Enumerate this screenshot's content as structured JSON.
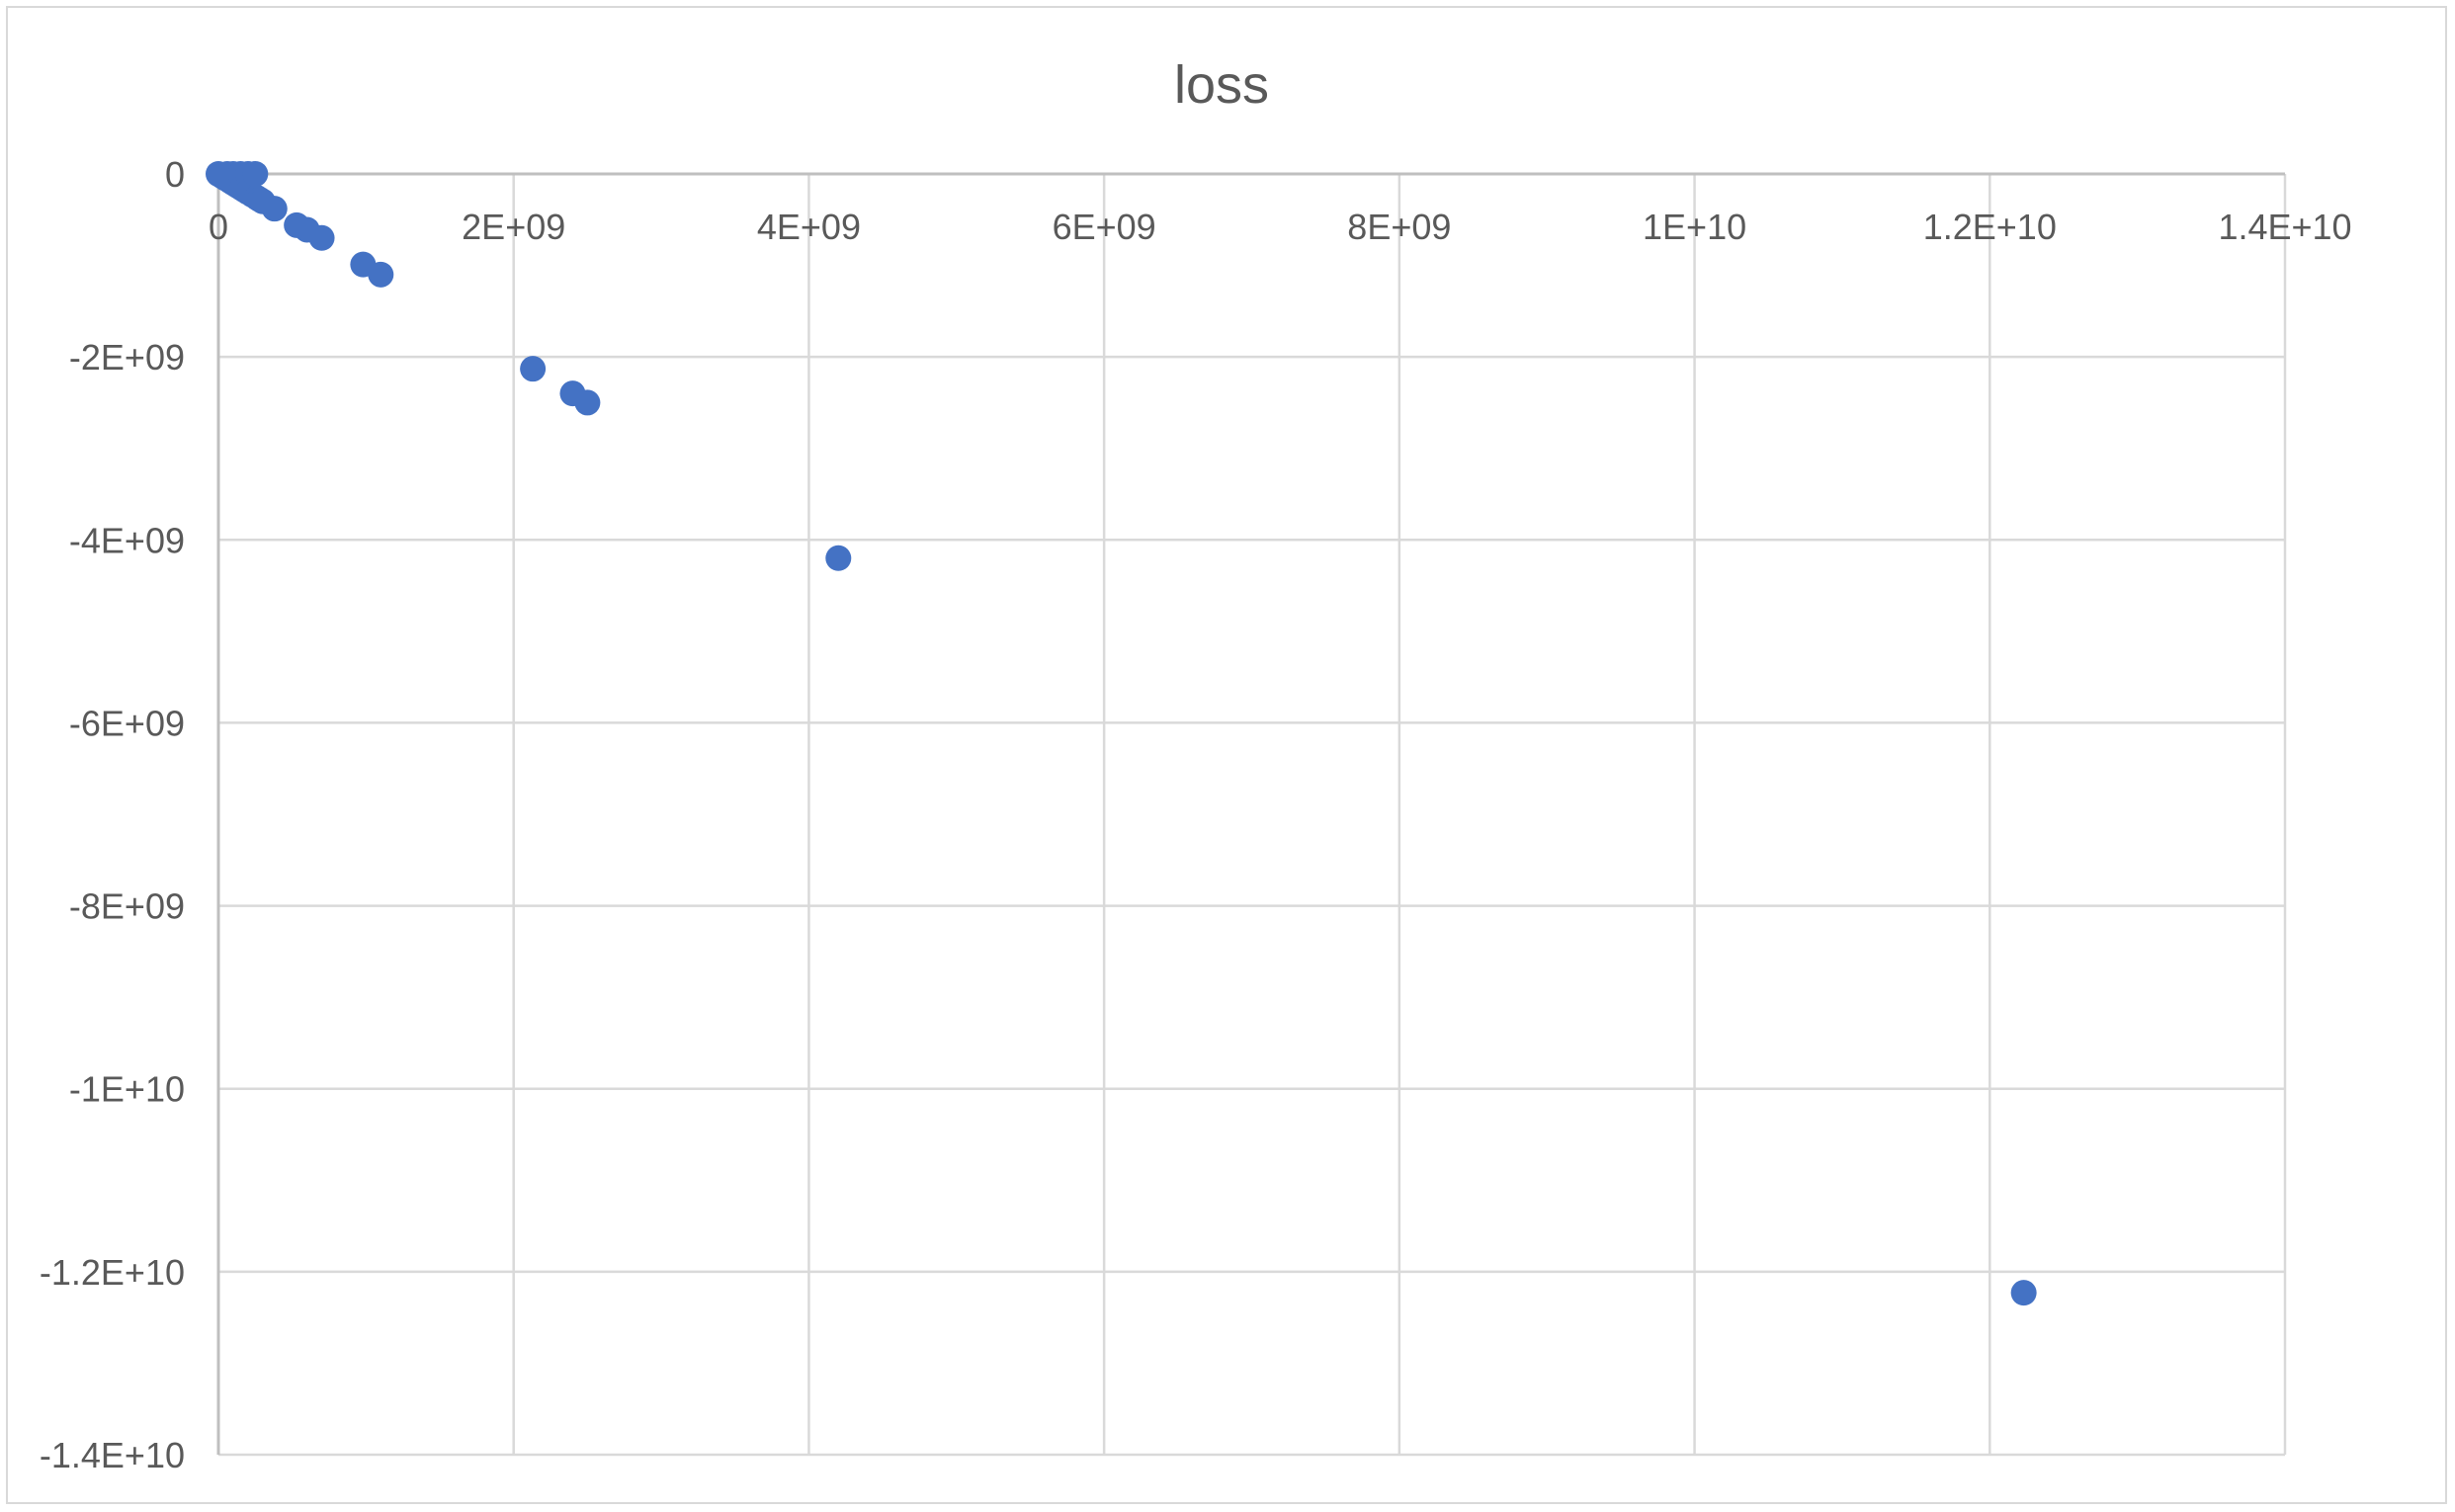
{
  "chart_data": {
    "type": "scatter",
    "title": "loss",
    "xlabel": "",
    "ylabel": "",
    "xlim": [
      0,
      14000000000
    ],
    "ylim": [
      -14000000000,
      0
    ],
    "x_ticks": [
      {
        "value": 0,
        "label": "0"
      },
      {
        "value": 2000000000,
        "label": "2E+09"
      },
      {
        "value": 4000000000,
        "label": "4E+09"
      },
      {
        "value": 6000000000,
        "label": "6E+09"
      },
      {
        "value": 8000000000,
        "label": "8E+09"
      },
      {
        "value": 10000000000,
        "label": "1E+10"
      },
      {
        "value": 12000000000,
        "label": "1.2E+10"
      },
      {
        "value": 14000000000,
        "label": "1.4E+10"
      }
    ],
    "y_ticks": [
      {
        "value": 0,
        "label": "0"
      },
      {
        "value": -2000000000,
        "label": "-2E+09"
      },
      {
        "value": -4000000000,
        "label": "-4E+09"
      },
      {
        "value": -6000000000,
        "label": "-6E+09"
      },
      {
        "value": -8000000000,
        "label": "-8E+09"
      },
      {
        "value": -10000000000,
        "label": "-1E+10"
      },
      {
        "value": -12000000000,
        "label": "-1.2E+10"
      },
      {
        "value": -14000000000,
        "label": "-1.4E+10"
      }
    ],
    "grid": true,
    "legend": "none",
    "marker_color": "#4472C4",
    "series": [
      {
        "points": [
          [
            0,
            0
          ],
          [
            10000000,
            -10000000
          ],
          [
            30000000,
            -30000000
          ],
          [
            50000000,
            -50000000
          ],
          [
            60000000,
            0
          ],
          [
            80000000,
            -80000000
          ],
          [
            100000000,
            -100000000
          ],
          [
            100000000,
            0
          ],
          [
            120000000,
            -120000000
          ],
          [
            140000000,
            -140000000
          ],
          [
            150000000,
            0
          ],
          [
            160000000,
            -160000000
          ],
          [
            180000000,
            -180000000
          ],
          [
            200000000,
            0
          ],
          [
            200000000,
            -200000000
          ],
          [
            230000000,
            -230000000
          ],
          [
            250000000,
            0
          ],
          [
            260000000,
            -260000000
          ],
          [
            280000000,
            -280000000
          ],
          [
            300000000,
            -300000000
          ],
          [
            380000000,
            -380000000
          ],
          [
            530000000,
            -560000000
          ],
          [
            600000000,
            -610000000
          ],
          [
            700000000,
            -700000000
          ],
          [
            980000000,
            -990000000
          ],
          [
            1100000000,
            -1100000000
          ],
          [
            2130000000,
            -2130000000
          ],
          [
            2400000000,
            -2400000000
          ],
          [
            2500000000,
            -2500000000
          ],
          [
            4200000000,
            -4200000000
          ],
          [
            12230000000,
            -12230000000
          ]
        ]
      }
    ]
  }
}
